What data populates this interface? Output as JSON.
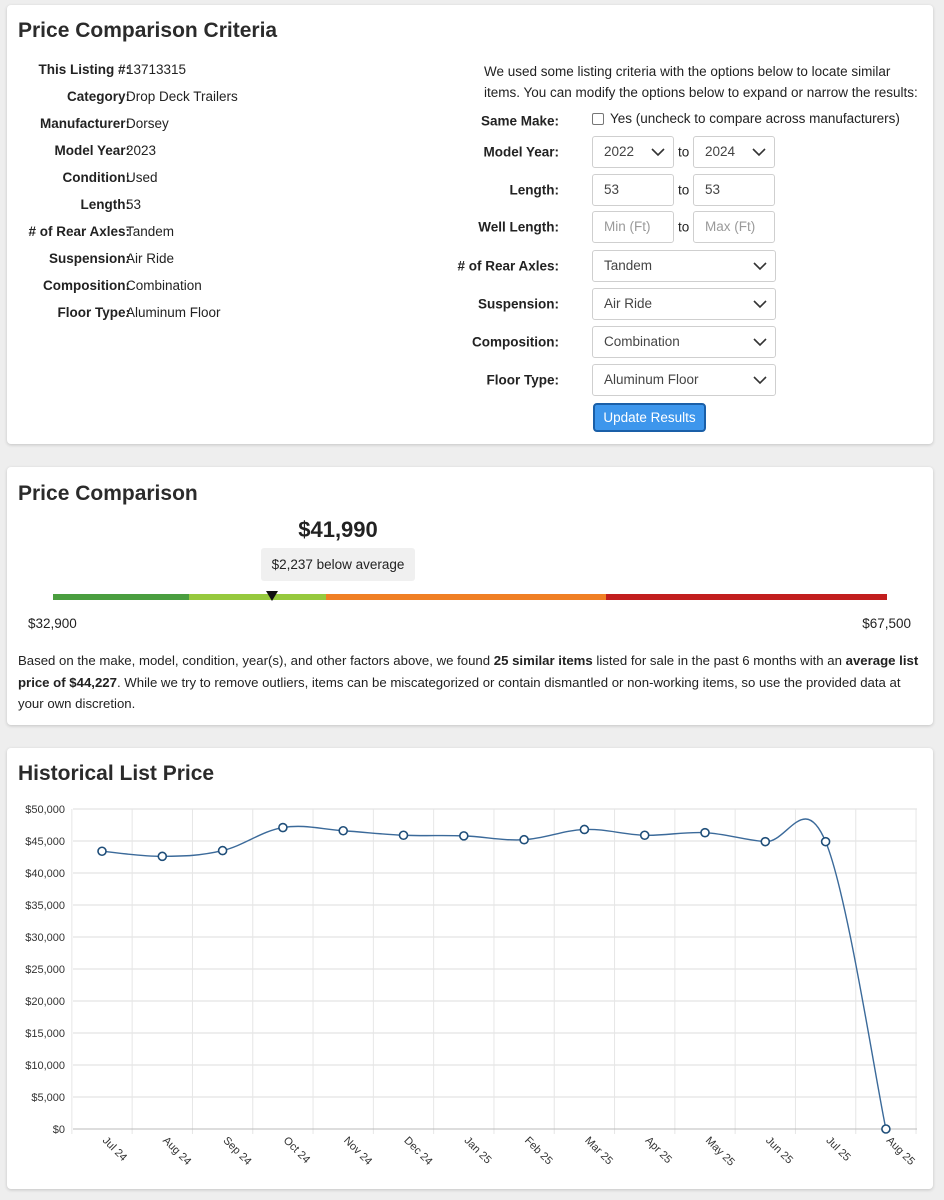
{
  "criteria": {
    "title": "Price Comparison Criteria",
    "specs": [
      {
        "label": "This Listing #:",
        "value": "13713315"
      },
      {
        "label": "Category:",
        "value": "Drop Deck Trailers"
      },
      {
        "label": "Manufacturer:",
        "value": "Dorsey"
      },
      {
        "label": "Model Year:",
        "value": "2023"
      },
      {
        "label": "Condition:",
        "value": "Used"
      },
      {
        "label": "Length:",
        "value": "53"
      },
      {
        "label": "# of Rear Axles:",
        "value": "Tandem"
      },
      {
        "label": "Suspension:",
        "value": "Air Ride"
      },
      {
        "label": "Composition:",
        "value": "Combination"
      },
      {
        "label": "Floor Type:",
        "value": "Aluminum Floor"
      }
    ],
    "intro": "We used some listing criteria with the options below to locate similar items. You can modify the options below to expand or narrow the results:",
    "form": {
      "same_make_label": "Same Make:",
      "same_make_text": "Yes (uncheck to compare across manufacturers)",
      "same_make_checked": false,
      "model_year_label": "Model Year:",
      "model_year_from": "2022",
      "model_year_to": "2024",
      "to_text": "to",
      "length_label": "Length:",
      "length_from": "53",
      "length_to": "53",
      "well_length_label": "Well Length:",
      "well_length_min_placeholder": "Min (Ft)",
      "well_length_max_placeholder": "Max (Ft)",
      "axles_label": "# of Rear Axles:",
      "axles_value": "Tandem",
      "suspension_label": "Suspension:",
      "suspension_value": "Air Ride",
      "composition_label": "Composition:",
      "composition_value": "Combination",
      "floor_label": "Floor Type:",
      "floor_value": "Aluminum Floor",
      "update_button": "Update Results"
    }
  },
  "comparison": {
    "title": "Price Comparison",
    "price": "$41,990",
    "badge": "$2,237 below average",
    "range_min": "$32,900",
    "range_max": "$67,500",
    "price_position": 0.263,
    "segment_colors": [
      "#4a9e3f",
      "#96c93d",
      "#f07f24",
      "#c21e1e"
    ],
    "desc_1": "Based on the make, model, condition, year(s), and other factors above, we found ",
    "desc_similar": "25 similar items",
    "desc_2": " listed for sale in the past 6 months with an ",
    "desc_avg": "average list price of $44,227",
    "desc_3": ". While we try to remove outliers, items can be miscategorized or contain dismantled or non-working items, so use the provided data at your own discretion."
  },
  "history": {
    "title": "Historical List Price"
  },
  "chart_data": {
    "type": "line",
    "title": "Historical List Price",
    "xlabel": "",
    "ylabel": "",
    "categories": [
      "Jul 24",
      "Aug 24",
      "Sep 24",
      "Oct 24",
      "Nov 24",
      "Dec 24",
      "Jan 25",
      "Feb 25",
      "Mar 25",
      "Apr 25",
      "May 25",
      "Jun 25",
      "Jul 25",
      "Aug 25"
    ],
    "values": [
      43400,
      42600,
      43500,
      47100,
      46600,
      45900,
      45800,
      45200,
      46800,
      45900,
      46300,
      44900,
      44900,
      0
    ],
    "ylim": [
      0,
      50000
    ],
    "yticks": [
      "$0",
      "$5,000",
      "$10,000",
      "$15,000",
      "$20,000",
      "$25,000",
      "$30,000",
      "$35,000",
      "$40,000",
      "$45,000",
      "$50,000"
    ],
    "line_color": "#3b6a9a",
    "grid": true
  }
}
